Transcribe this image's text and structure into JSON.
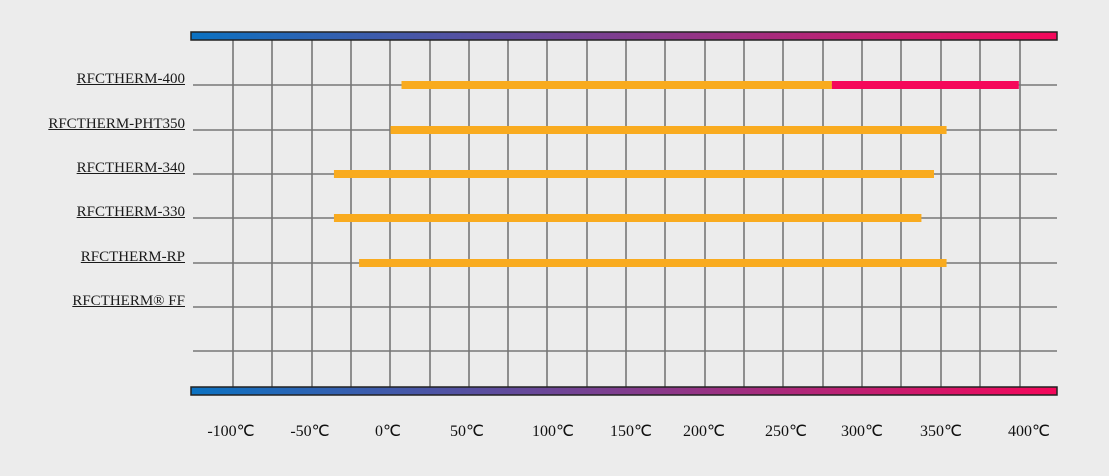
{
  "chart_data": {
    "type": "bar",
    "orientation": "horizontal-range",
    "unit": "℃",
    "xlim": [
      -125,
      420
    ],
    "x_ticks": [
      "-100℃",
      "-50℃",
      "0℃",
      "50℃",
      "100℃",
      "150℃",
      "200℃",
      "250℃",
      "300℃",
      "350℃",
      "400℃"
    ],
    "x_tick_values": [
      -100,
      -50,
      0,
      50,
      100,
      150,
      200,
      250,
      300,
      350,
      400
    ],
    "categories": [
      "RFCTHERM-400",
      "RFCTHERM-PHT350",
      "RFCTHERM-340",
      "RFCTHERM-330",
      "RFCTHERM-RP",
      "RFCTHERM® FF"
    ],
    "series": [
      {
        "color": "#f9ab1f",
        "ranges": [
          [
            7,
            281
          ],
          [
            0,
            354
          ],
          [
            -36,
            346
          ],
          [
            -36,
            338
          ],
          [
            -20,
            354
          ],
          null
        ]
      },
      {
        "color": "#f5075a",
        "ranges": [
          [
            281,
            400
          ],
          null,
          null,
          null,
          null,
          null
        ]
      }
    ],
    "gradient": {
      "from": "#0b72c2",
      "to": "#f5075a"
    },
    "grid": true
  }
}
